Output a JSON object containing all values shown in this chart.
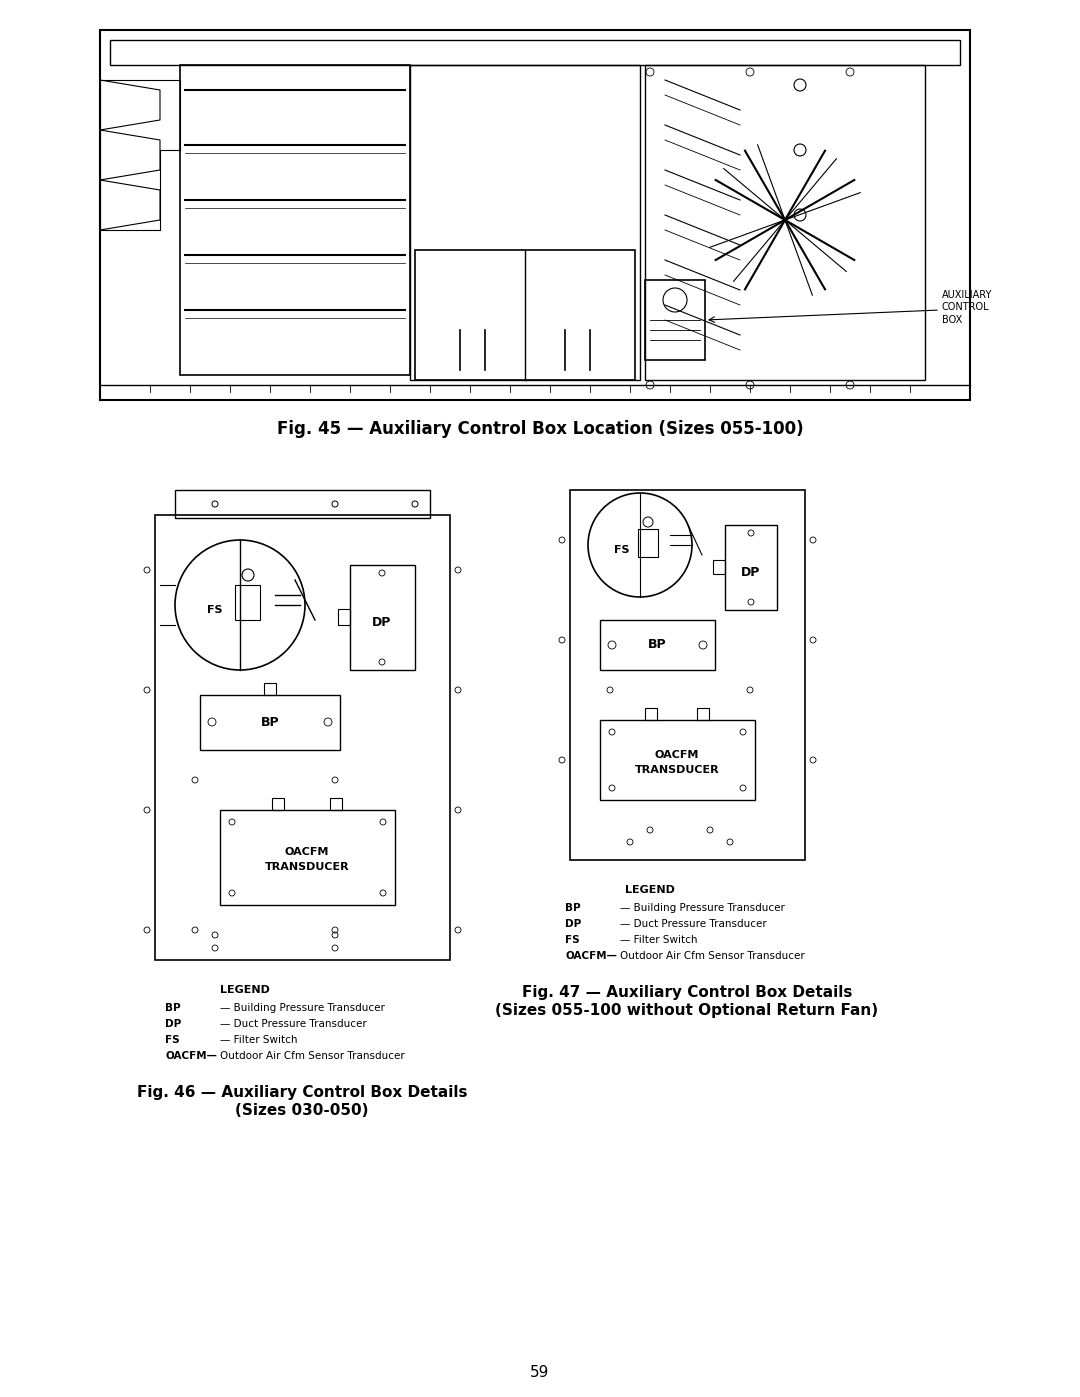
{
  "page_bg": "#ffffff",
  "fig45_caption": "Fig. 45 — Auxiliary Control Box Location (Sizes 055-100)",
  "fig46_caption_line1": "Fig. 46 — Auxiliary Control Box Details",
  "fig46_caption_line2": "(Sizes 030-050)",
  "fig47_caption_line1": "Fig. 47 — Auxiliary Control Box Details",
  "fig47_caption_line2": "(Sizes 055-100 without Optional Return Fan)",
  "legend_title": "LEGEND",
  "legend_items": [
    [
      "BP",
      "Building Pressure Transducer"
    ],
    [
      "DP",
      "Duct Pressure Transducer"
    ],
    [
      "FS",
      "Filter Switch"
    ],
    [
      "OACFM—",
      "Outdoor Air Cfm Sensor Transducer"
    ]
  ],
  "page_number": "59",
  "line_color": "#000000",
  "box_color": "#000000",
  "auxiliary_label": "AUXILIARY\nCONTROL\nBOX"
}
